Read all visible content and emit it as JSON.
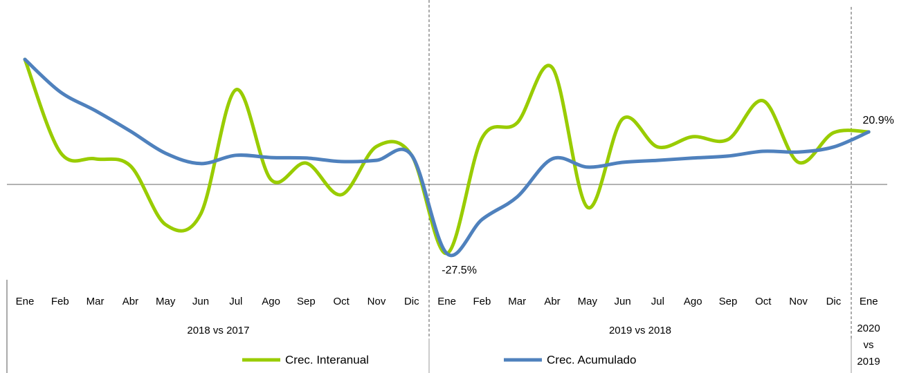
{
  "chart_data": {
    "type": "line",
    "groups": [
      {
        "name": "2018 vs 2017",
        "categories": [
          "Ene",
          "Feb",
          "Mar",
          "Abr",
          "May",
          "Jun",
          "Jul",
          "Ago",
          "Sep",
          "Oct",
          "Nov",
          "Dic"
        ]
      },
      {
        "name": "2019 vs 2018",
        "categories": [
          "Ene",
          "Feb",
          "Mar",
          "Abr",
          "May",
          "Jun",
          "Jul",
          "Ago",
          "Sep",
          "Oct",
          "Nov",
          "Dic"
        ]
      },
      {
        "name": "2020 vs 2019",
        "categories": [
          "Ene"
        ]
      }
    ],
    "series": [
      {
        "name": "Crec. Interanual",
        "color": "#99cc00",
        "values": [
          49.8,
          12.9,
          10.2,
          7.4,
          -16.0,
          -11.8,
          37.7,
          1.9,
          8.5,
          -4.1,
          15.1,
          11.6,
          -27.5,
          18.4,
          24.5,
          46.5,
          -9.1,
          26.1,
          14.9,
          19.0,
          17.9,
          33.3,
          8.8,
          20.6,
          20.9
        ],
        "value_labels": [
          null,
          null,
          null,
          null,
          null,
          null,
          null,
          null,
          null,
          null,
          null,
          null,
          "-27.5%",
          null,
          null,
          null,
          null,
          null,
          null,
          null,
          null,
          null,
          null,
          null,
          "20.9%"
        ]
      },
      {
        "name": "Crec. Acumulado",
        "color": "#4f81bd",
        "values": [
          49.8,
          36.9,
          29.4,
          21.2,
          12.4,
          8.3,
          11.6,
          10.7,
          10.5,
          9.1,
          9.6,
          11.6,
          -27.5,
          -14.0,
          -5.0,
          10.2,
          6.9,
          8.8,
          9.6,
          10.5,
          11.3,
          13.2,
          12.9,
          14.9,
          20.9
        ]
      }
    ],
    "ylim": [
      -36.6,
      70.7
    ]
  }
}
